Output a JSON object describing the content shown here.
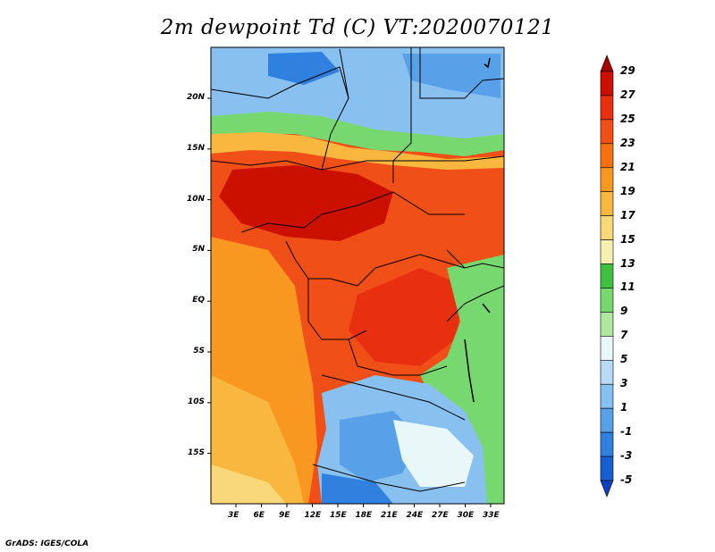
{
  "title": "2m dewpoint Td (C) VT:2020070121",
  "credit": "GrADS: IGES/COLA",
  "map": {
    "lon_labels": [
      "3E",
      "6E",
      "9E",
      "12E",
      "15E",
      "18E",
      "21E",
      "24E",
      "27E",
      "30E",
      "33E"
    ],
    "lat_labels": [
      "20N",
      "15N",
      "10N",
      "5N",
      "EQ",
      "5S",
      "10S",
      "15S"
    ]
  },
  "colorbar": {
    "labels": [
      "29",
      "27",
      "25",
      "23",
      "21",
      "19",
      "17",
      "15",
      "13",
      "11",
      "9",
      "7",
      "5",
      "3",
      "1",
      "-1",
      "-3",
      "-5"
    ],
    "colors": [
      "#a50000",
      "#cc1000",
      "#e83010",
      "#f05018",
      "#f87010",
      "#f89820",
      "#f8b840",
      "#f8d878",
      "#f8f0b0",
      "#40c040",
      "#78d870",
      "#b0e8a0",
      "#e8f8f8",
      "#b8dcf8",
      "#88c0f0",
      "#58a0e8",
      "#3080e0",
      "#1860d0",
      "#1040c0"
    ]
  }
}
